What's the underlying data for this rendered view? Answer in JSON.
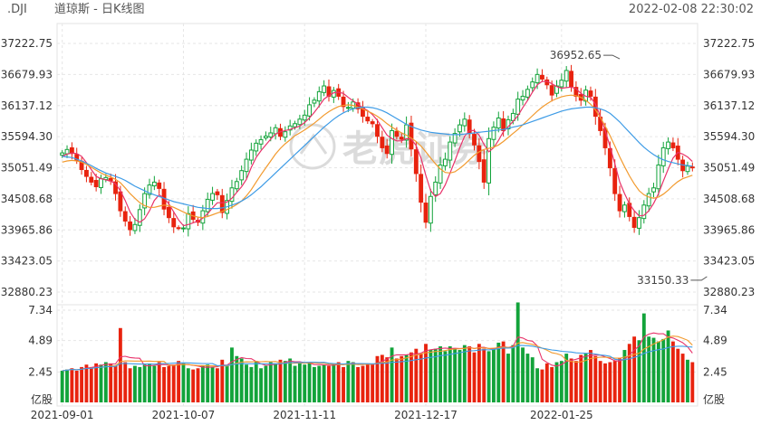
{
  "header": {
    "symbol": ".DJI",
    "title": "道琼斯 - 日K线图",
    "timestamp": "2022-02-08 22:30:02"
  },
  "watermark": "老虎证券",
  "colors": {
    "up": "#12a33a",
    "down": "#e8230e",
    "ma_short": "#e8326a",
    "ma_mid": "#f29a2e",
    "ma_long": "#3d9be6",
    "grid": "#e6e6e6"
  },
  "chart_data": {
    "type": "candlestick",
    "price_axis": {
      "ticks": [
        "37222.75",
        "36679.93",
        "36137.12",
        "35594.30",
        "35051.49",
        "34508.68",
        "33965.86",
        "33423.05",
        "32880.23"
      ],
      "ylim": [
        32880.23,
        37222.75
      ]
    },
    "volume_axis": {
      "ticks": [
        "7.34",
        "4.89",
        "2.45"
      ],
      "unit": "亿股",
      "ylim": [
        0,
        7.34
      ]
    },
    "x_ticks": [
      "2021-09-01",
      "2021-10-07",
      "2021-11-11",
      "2021-12-17",
      "2022-01-25"
    ],
    "annotations": [
      {
        "text": "36952.65",
        "value": 36952.65,
        "at_index": 115
      },
      {
        "text": "33150.33",
        "value": 33150.33,
        "at_index": 133
      }
    ],
    "closes": [
      35310,
      35370,
      35300,
      35180,
      35020,
      34900,
      34800,
      34720,
      34860,
      34880,
      34820,
      34600,
      34300,
      34120,
      33970,
      34060,
      34320,
      34600,
      34750,
      34800,
      34690,
      34330,
      34180,
      34020,
      34002,
      34000,
      34250,
      34150,
      34100,
      34300,
      34500,
      34601,
      34580,
      34270,
      34480,
      34700,
      34810,
      35001,
      35200,
      35360,
      35480,
      35542,
      35603,
      35660,
      35750,
      35600,
      35680,
      35781,
      35821,
      35900,
      35970,
      36150,
      36232,
      36380,
      36480,
      36300,
      36400,
      36300,
      36120,
      36105,
      36200,
      36080,
      35950,
      35870,
      35820,
      35600,
      35400,
      35300,
      35700,
      35600,
      35550,
      35800,
      35380,
      34950,
      34450,
      34100,
      34550,
      34800,
      35100,
      35200,
      35500,
      35650,
      35800,
      35900,
      35650,
      35450,
      35160,
      34800,
      35560,
      35760,
      35920,
      35700,
      35890,
      36000,
      36250,
      36300,
      36420,
      36550,
      36680,
      36600,
      36500,
      36321,
      36480,
      36580,
      36750,
      36470,
      36300,
      36230,
      36407,
      36300,
      35950,
      35700,
      35400,
      35050,
      34600,
      34300,
      34400,
      34200,
      34010,
      34180,
      34400,
      34600,
      34700,
      35100,
      35400,
      35500,
      35400,
      35200,
      35000,
      35080,
      35050
    ],
    "volumes": [
      2.6,
      2.7,
      2.8,
      2.6,
      2.9,
      3.1,
      2.9,
      3.2,
      3.1,
      3.3,
      3.2,
      3.0,
      6.1,
      3.3,
      2.8,
      3.0,
      2.9,
      3.1,
      3.2,
      3.0,
      3.3,
      2.9,
      3.0,
      3.1,
      3.4,
      3.2,
      2.8,
      2.7,
      2.8,
      3.0,
      3.1,
      2.9,
      2.8,
      3.5,
      3.0,
      4.5,
      3.8,
      3.6,
      3.1,
      2.9,
      3.4,
      2.8,
      3.0,
      3.3,
      3.2,
      3.5,
      3.4,
      3.6,
      3.0,
      3.2,
      3.1,
      3.3,
      2.9,
      3.0,
      3.1,
      3.0,
      3.2,
      3.3,
      2.9,
      3.4,
      3.3,
      2.9,
      3.0,
      3.2,
      3.1,
      3.8,
      3.9,
      3.7,
      4.5,
      3.6,
      3.8,
      3.9,
      4.1,
      4.4,
      4.0,
      4.8,
      4.3,
      4.4,
      4.6,
      4.2,
      4.6,
      4.4,
      4.3,
      4.7,
      4.6,
      4.1,
      4.8,
      4.4,
      4.2,
      4.4,
      4.9,
      5.0,
      4.0,
      4.7,
      8.2,
      4.5,
      4.0,
      3.7,
      2.8,
      2.7,
      3.2,
      2.9,
      3.3,
      3.4,
      4.0,
      3.6,
      3.4,
      3.9,
      4.0,
      4.3,
      3.8,
      3.4,
      3.2,
      3.3,
      3.4,
      3.6,
      4.3,
      4.8,
      5.4,
      5.1,
      7.3,
      5.4,
      5.3,
      5.0,
      5.2,
      5.9,
      5.0,
      4.4,
      4.0,
      3.5,
      3.3
    ],
    "ma_price": {
      "short": [
        35250,
        35290,
        35310,
        35300,
        35250,
        35140,
        35020,
        34900,
        34860,
        34840,
        34820,
        34770,
        34650,
        34480,
        34280,
        34150,
        34100,
        34160,
        34300,
        34480,
        34580,
        34520,
        34420,
        34280,
        34140,
        34040,
        34060,
        34090,
        34120,
        34170,
        34250,
        34350,
        34440,
        34440,
        34450,
        34520,
        34620,
        34720,
        34850,
        35060,
        35230,
        35350,
        35450,
        35550,
        35640,
        35680,
        35700,
        35720,
        35750,
        35780,
        35840,
        35920,
        36020,
        36130,
        36250,
        36310,
        36360,
        36370,
        36350,
        36280,
        36220,
        36160,
        36100,
        36050,
        35980,
        35880,
        35750,
        35620,
        35560,
        35520,
        35520,
        35560,
        35550,
        35440,
        35220,
        34920,
        34650,
        34550,
        34600,
        34750,
        34960,
        35170,
        35400,
        35600,
        35700,
        35700,
        35620,
        35460,
        35330,
        35400,
        35530,
        35680,
        35770,
        35860,
        35960,
        36100,
        36230,
        36370,
        36500,
        36560,
        36560,
        36520,
        36470,
        36440,
        36450,
        36460,
        36430,
        36350,
        36300,
        36280,
        36160,
        35950,
        35700,
        35420,
        35120,
        34800,
        34600,
        34420,
        34300,
        34210,
        34220,
        34300,
        34430,
        34600,
        34820,
        35030,
        35220,
        35320,
        35290,
        35240,
        35160
      ],
      "mid": [
        35150,
        35170,
        35180,
        35170,
        35150,
        35110,
        35060,
        35010,
        34960,
        34920,
        34890,
        34850,
        34790,
        34700,
        34600,
        34520,
        34440,
        34390,
        34360,
        34360,
        34380,
        34400,
        34390,
        34360,
        34320,
        34280,
        34240,
        34210,
        34190,
        34180,
        34200,
        34230,
        34260,
        34290,
        34320,
        34360,
        34410,
        34470,
        34560,
        34670,
        34800,
        34930,
        35050,
        35170,
        35290,
        35390,
        35470,
        35540,
        35610,
        35660,
        35710,
        35770,
        35830,
        35900,
        35970,
        36030,
        36080,
        36120,
        36140,
        36150,
        36140,
        36110,
        36080,
        36040,
        36000,
        35950,
        35890,
        35820,
        35760,
        35710,
        35660,
        35620,
        35570,
        35510,
        35430,
        35330,
        35220,
        35120,
        35030,
        34970,
        34960,
        34980,
        35040,
        35110,
        35190,
        35270,
        35330,
        35370,
        35390,
        35410,
        35450,
        35510,
        35580,
        35650,
        35720,
        35800,
        35880,
        35960,
        36040,
        36110,
        36170,
        36220,
        36260,
        36290,
        36310,
        36320,
        36310,
        36280,
        36230,
        36160,
        36060,
        35930,
        35780,
        35610,
        35430,
        35240,
        35070,
        34910,
        34770,
        34650,
        34580,
        34540,
        34520,
        34540,
        34590,
        34660,
        34740,
        34810,
        34860,
        34890,
        34920
      ],
      "long": [
        35250,
        35240,
        35230,
        35200,
        35170,
        35130,
        35090,
        35040,
        35000,
        34960,
        34930,
        34900,
        34870,
        34830,
        34780,
        34730,
        34690,
        34650,
        34610,
        34580,
        34550,
        34520,
        34490,
        34460,
        34440,
        34420,
        34400,
        34380,
        34360,
        34350,
        34340,
        34340,
        34340,
        34350,
        34370,
        34400,
        34430,
        34470,
        34520,
        34580,
        34650,
        34720,
        34800,
        34880,
        34960,
        35040,
        35120,
        35200,
        35280,
        35360,
        35440,
        35520,
        35600,
        35680,
        35760,
        35830,
        35900,
        35960,
        36010,
        36050,
        36080,
        36100,
        36110,
        36110,
        36100,
        36080,
        36050,
        36010,
        35960,
        35910,
        35860,
        35810,
        35770,
        35740,
        35710,
        35690,
        35670,
        35660,
        35650,
        35640,
        35630,
        35630,
        35630,
        35640,
        35650,
        35660,
        35670,
        35680,
        35690,
        35700,
        35710,
        35720,
        35740,
        35760,
        35780,
        35800,
        35830,
        35860,
        35890,
        35920,
        35950,
        35980,
        36010,
        36040,
        36060,
        36080,
        36090,
        36100,
        36110,
        36110,
        36100,
        36080,
        36050,
        36000,
        35930,
        35850,
        35760,
        35670,
        35580,
        35490,
        35410,
        35340,
        35280,
        35230,
        35190,
        35160,
        35140,
        35120,
        35100,
        35090,
        35080
      ]
    }
  }
}
